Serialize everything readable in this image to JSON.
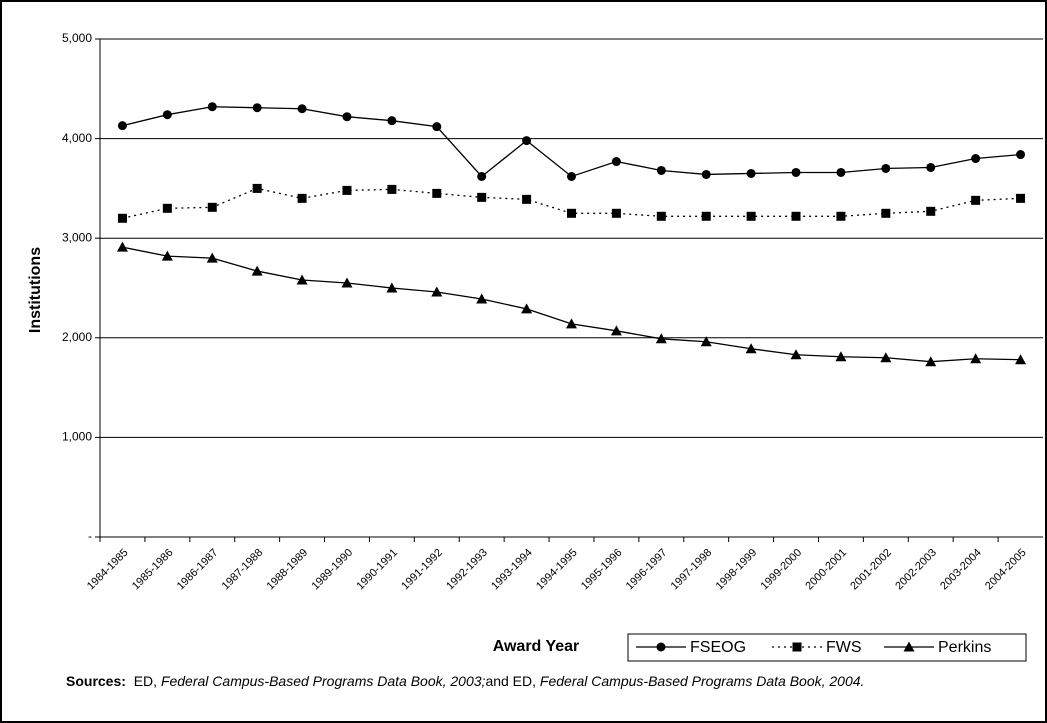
{
  "chart_data": {
    "type": "line",
    "y_label": "Institutions",
    "x_label": "Award Year",
    "categories": [
      "1984-1985",
      "1985-1986",
      "1986-1987",
      "1987-1988",
      "1988-1989",
      "1989-1990",
      "1990-1991",
      "1991-1992",
      "1992-1993",
      "1993-1994",
      "1994-1995",
      "1995-1996",
      "1996-1997",
      "1997-1998",
      "1998-1999",
      "1999-2000",
      "2000-2001",
      "2001-2002",
      "2002-2003",
      "2003-2004",
      "2004-2005"
    ],
    "series": [
      {
        "name": "FSEOG",
        "color": "#000000",
        "marker": "circle",
        "dash": "solid",
        "values": [
          4130,
          4240,
          4320,
          4310,
          4300,
          4220,
          4180,
          4120,
          3620,
          3980,
          3620,
          3770,
          3680,
          3640,
          3650,
          3660,
          3660,
          3700,
          3710,
          3800,
          3840
        ]
      },
      {
        "name": "FWS",
        "color": "#000000",
        "marker": "square",
        "dash": "dotted",
        "values": [
          3200,
          3300,
          3310,
          3500,
          3400,
          3480,
          3490,
          3450,
          3410,
          3390,
          3250,
          3250,
          3220,
          3220,
          3220,
          3220,
          3220,
          3250,
          3270,
          3380,
          3400
        ]
      },
      {
        "name": "Perkins",
        "color": "#000000",
        "marker": "triangle",
        "dash": "solid",
        "values": [
          2910,
          2820,
          2800,
          2670,
          2580,
          2550,
          2500,
          2460,
          2390,
          2290,
          2140,
          2070,
          1990,
          1960,
          1890,
          1830,
          1810,
          1800,
          1760,
          1790,
          1780
        ]
      }
    ],
    "ylim": [
      0,
      5000
    ],
    "yticks": [
      {
        "value": 0,
        "label": "-"
      },
      {
        "value": 1000,
        "label": "1,000"
      },
      {
        "value": 2000,
        "label": "2,000"
      },
      {
        "value": 3000,
        "label": "3,000"
      },
      {
        "value": 4000,
        "label": "4,000"
      },
      {
        "value": 5000,
        "label": "5,000"
      }
    ],
    "grid": true,
    "source": [
      "Sources:",
      "ED,",
      "Federal Campus-Based Programs Data Book, 2003;",
      "and ED,",
      "Federal Campus-Based Programs Data Book, 2004."
    ]
  }
}
